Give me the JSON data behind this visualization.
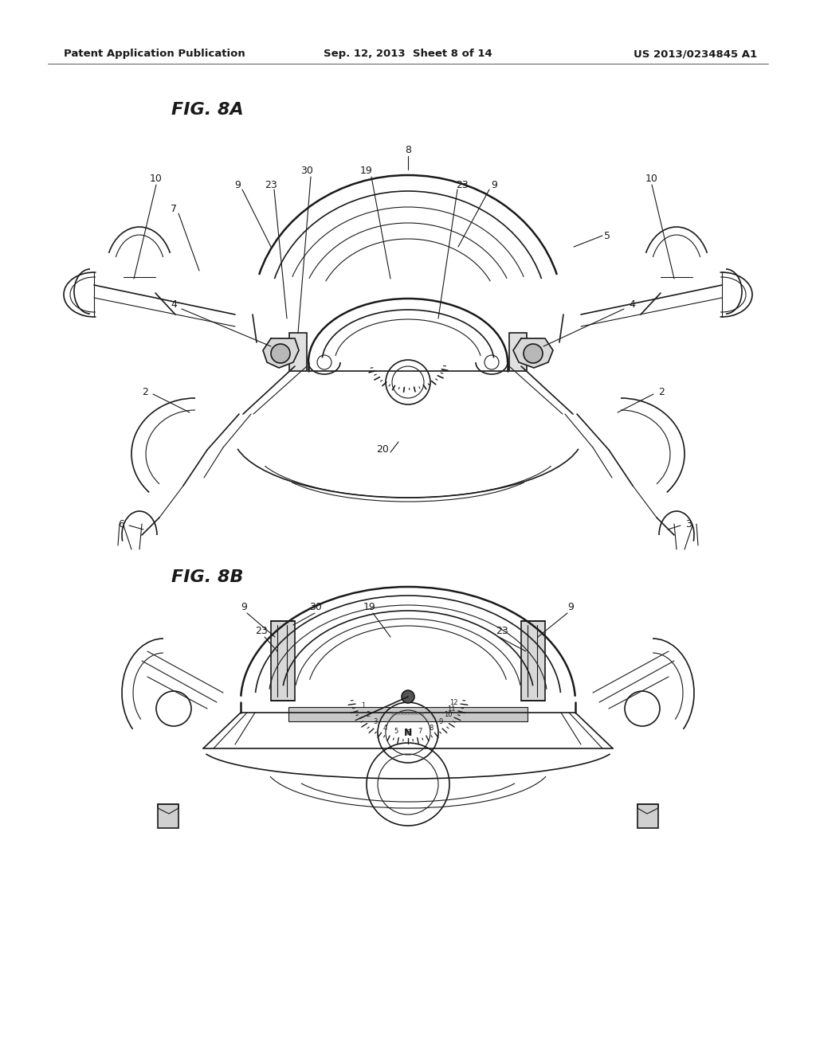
{
  "background_color": "#ffffff",
  "header": {
    "left": "Patent Application Publication",
    "center": "Sep. 12, 2013  Sheet 8 of 14",
    "right": "US 2013/0234845 A1"
  },
  "fig8a_title": "FIG. 8A",
  "fig8b_title": "FIG. 8B"
}
